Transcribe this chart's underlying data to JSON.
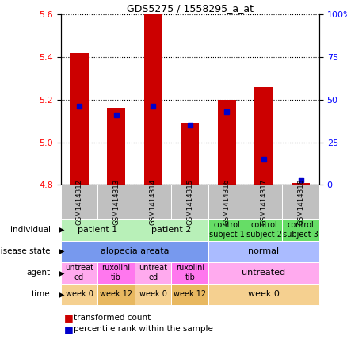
{
  "title": "GDS5275 / 1558295_a_at",
  "samples": [
    "GSM1414312",
    "GSM1414313",
    "GSM1414314",
    "GSM1414315",
    "GSM1414316",
    "GSM1414317",
    "GSM1414318"
  ],
  "bar_values": [
    5.42,
    5.16,
    5.6,
    5.09,
    5.2,
    5.26,
    4.81
  ],
  "bar_base": 4.8,
  "percentile_values": [
    46,
    41,
    46,
    35,
    43,
    15,
    3
  ],
  "ylim_left": [
    4.8,
    5.6
  ],
  "ylim_right": [
    0,
    100
  ],
  "yticks_left": [
    4.8,
    5.0,
    5.2,
    5.4,
    5.6
  ],
  "yticks_right": [
    0,
    25,
    50,
    75,
    100
  ],
  "bar_color": "#cc0000",
  "dot_color": "#0000cc",
  "sample_bg_color": "#c0c0c0",
  "annotation_rows": [
    {
      "key": "individual",
      "label": "individual",
      "groups": [
        {
          "text": "patient 1",
          "cols": [
            0,
            1
          ],
          "color": "#b8f0b8"
        },
        {
          "text": "patient 2",
          "cols": [
            2,
            3
          ],
          "color": "#b8f0b8"
        },
        {
          "text": "control\nsubject 1",
          "cols": [
            4
          ],
          "color": "#66dd66"
        },
        {
          "text": "control\nsubject 2",
          "cols": [
            5
          ],
          "color": "#66dd66"
        },
        {
          "text": "control\nsubject 3",
          "cols": [
            6
          ],
          "color": "#66dd66"
        }
      ]
    },
    {
      "key": "disease_state",
      "label": "disease state",
      "groups": [
        {
          "text": "alopecia areata",
          "cols": [
            0,
            1,
            2,
            3
          ],
          "color": "#7799ee"
        },
        {
          "text": "normal",
          "cols": [
            4,
            5,
            6
          ],
          "color": "#aabbff"
        }
      ]
    },
    {
      "key": "agent",
      "label": "agent",
      "groups": [
        {
          "text": "untreat\ned",
          "cols": [
            0
          ],
          "color": "#ffaaee"
        },
        {
          "text": "ruxolini\ntib",
          "cols": [
            1
          ],
          "color": "#ff77ee"
        },
        {
          "text": "untreat\ned",
          "cols": [
            2
          ],
          "color": "#ffaaee"
        },
        {
          "text": "ruxolini\ntib",
          "cols": [
            3
          ],
          "color": "#ff77ee"
        },
        {
          "text": "untreated",
          "cols": [
            4,
            5,
            6
          ],
          "color": "#ffaaee"
        }
      ]
    },
    {
      "key": "time",
      "label": "time",
      "groups": [
        {
          "text": "week 0",
          "cols": [
            0
          ],
          "color": "#f5d090"
        },
        {
          "text": "week 12",
          "cols": [
            1
          ],
          "color": "#e8b860"
        },
        {
          "text": "week 0",
          "cols": [
            2
          ],
          "color": "#f5d090"
        },
        {
          "text": "week 12",
          "cols": [
            3
          ],
          "color": "#e8b860"
        },
        {
          "text": "week 0",
          "cols": [
            4,
            5,
            6
          ],
          "color": "#f5d090"
        }
      ]
    }
  ]
}
